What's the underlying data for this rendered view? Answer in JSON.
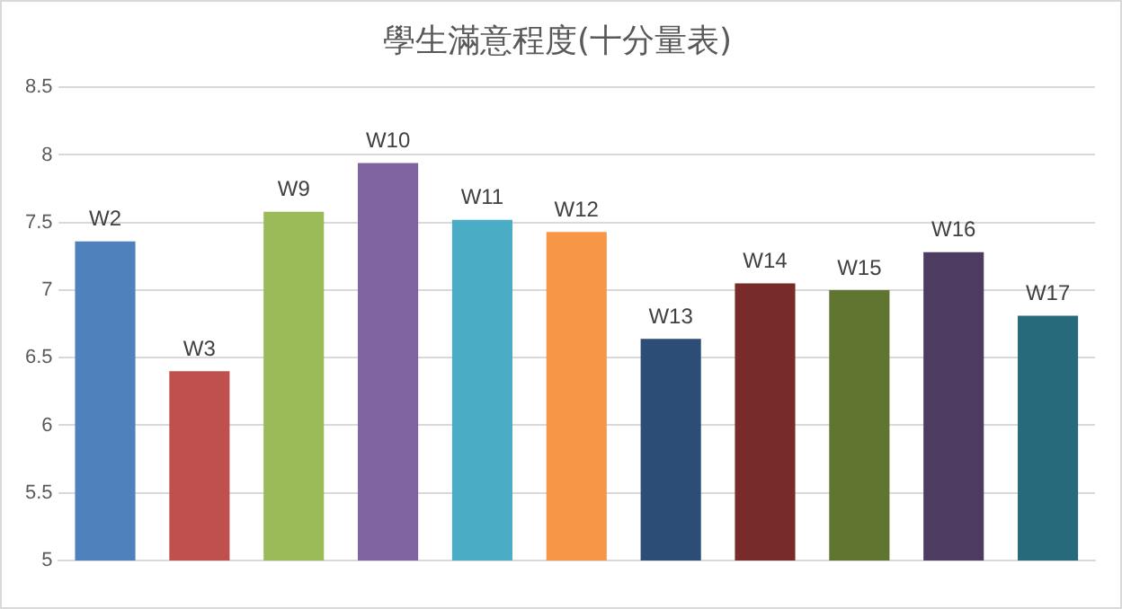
{
  "chart_data": {
    "type": "bar",
    "title": "學生滿意程度(十分量表)",
    "categories": [
      "W2",
      "W3",
      "W9",
      "W10",
      "W11",
      "W12",
      "W13",
      "W14",
      "W15",
      "W16",
      "W17"
    ],
    "values": [
      7.36,
      6.4,
      7.58,
      7.94,
      7.52,
      7.43,
      6.64,
      7.05,
      7.0,
      7.28,
      6.81
    ],
    "colors": [
      "#4f81bd",
      "#c0504d",
      "#9bbb59",
      "#8064a2",
      "#4bacc6",
      "#f79646",
      "#2c4d75",
      "#772c2a",
      "#5f7530",
      "#4d3b62",
      "#276a7c"
    ],
    "ylim": [
      5,
      8.5
    ],
    "yticks": [
      5,
      5.5,
      6,
      6.5,
      7,
      7.5,
      8,
      8.5
    ],
    "grid": "y",
    "tick_labels": "y"
  }
}
